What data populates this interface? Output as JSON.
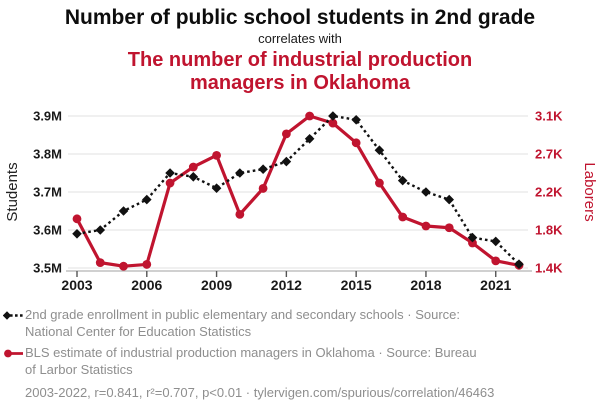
{
  "header": {
    "title_black": "Number of public school students in 2nd grade",
    "connector": "correlates with",
    "title_red": "The number of industrial production managers in Oklahoma"
  },
  "colors": {
    "accent_red": "#c0142f",
    "series_black": "#111111",
    "legend_gray": "#8e8e8e",
    "gridline": "#e7e7e7",
    "axis_line": "#b3b3b3",
    "tick_mark": "#555555",
    "tick_label": "#1a1a1a"
  },
  "chart_data": {
    "type": "line",
    "title": "Number of public school students in 2nd grade correlates with the number of industrial production managers in Oklahoma",
    "x": [
      2003,
      2004,
      2005,
      2006,
      2007,
      2008,
      2009,
      2010,
      2011,
      2012,
      2013,
      2014,
      2015,
      2016,
      2017,
      2018,
      2019,
      2020,
      2021,
      2022
    ],
    "x_ticks": [
      2003,
      2006,
      2009,
      2012,
      2015,
      2018,
      2021
    ],
    "grid": true,
    "legend_position": "bottom",
    "left_axis": {
      "label": "Students",
      "min": 3.5,
      "max": 3.9,
      "tick_labels": [
        "3.5M",
        "3.6M",
        "3.7M",
        "3.8M",
        "3.9M"
      ]
    },
    "right_axis": {
      "label": "Laborers",
      "min": 1.4,
      "max": 3.1,
      "tick_labels": [
        "1.4K",
        "1.8K",
        "2.2K",
        "2.7K",
        "3.1K"
      ]
    },
    "series": [
      {
        "name": "2nd grade enrollment in public elementary and secondary schools",
        "axis": "right_is_false_left",
        "unit": "M students",
        "color": "#111111",
        "style": "dashed-line-diamond-markers",
        "values": [
          3.59,
          3.6,
          3.65,
          3.68,
          3.75,
          3.74,
          3.71,
          3.75,
          3.76,
          3.78,
          3.84,
          3.9,
          3.89,
          3.81,
          3.73,
          3.7,
          3.68,
          3.58,
          3.57,
          3.51
        ]
      },
      {
        "name": "BLS estimate of industrial production managers in Oklahoma",
        "axis": "right",
        "unit": "K laborers",
        "color": "#c0142f",
        "style": "solid-line-circle-markers",
        "values": [
          1.95,
          1.46,
          1.42,
          1.44,
          2.35,
          2.53,
          2.66,
          2.0,
          2.29,
          2.9,
          3.1,
          3.02,
          2.8,
          2.35,
          1.97,
          1.87,
          1.85,
          1.68,
          1.48,
          1.43
        ]
      }
    ]
  },
  "legend": {
    "items": [
      {
        "marker": "black-diamond-dashed-line",
        "label": "2nd grade enrollment in public elementary and secondary schools · Source: National Center for Education Statistics"
      },
      {
        "marker": "red-circle-solid-line",
        "label": "BLS estimate of industrial production managers in Oklahoma · Source: Bureau of Larbor Statistics"
      }
    ],
    "footnote": "2003-2022, r=0.841, r²=0.707, p<0.01 · tylervigen.com/spurious/correlation/46463"
  }
}
